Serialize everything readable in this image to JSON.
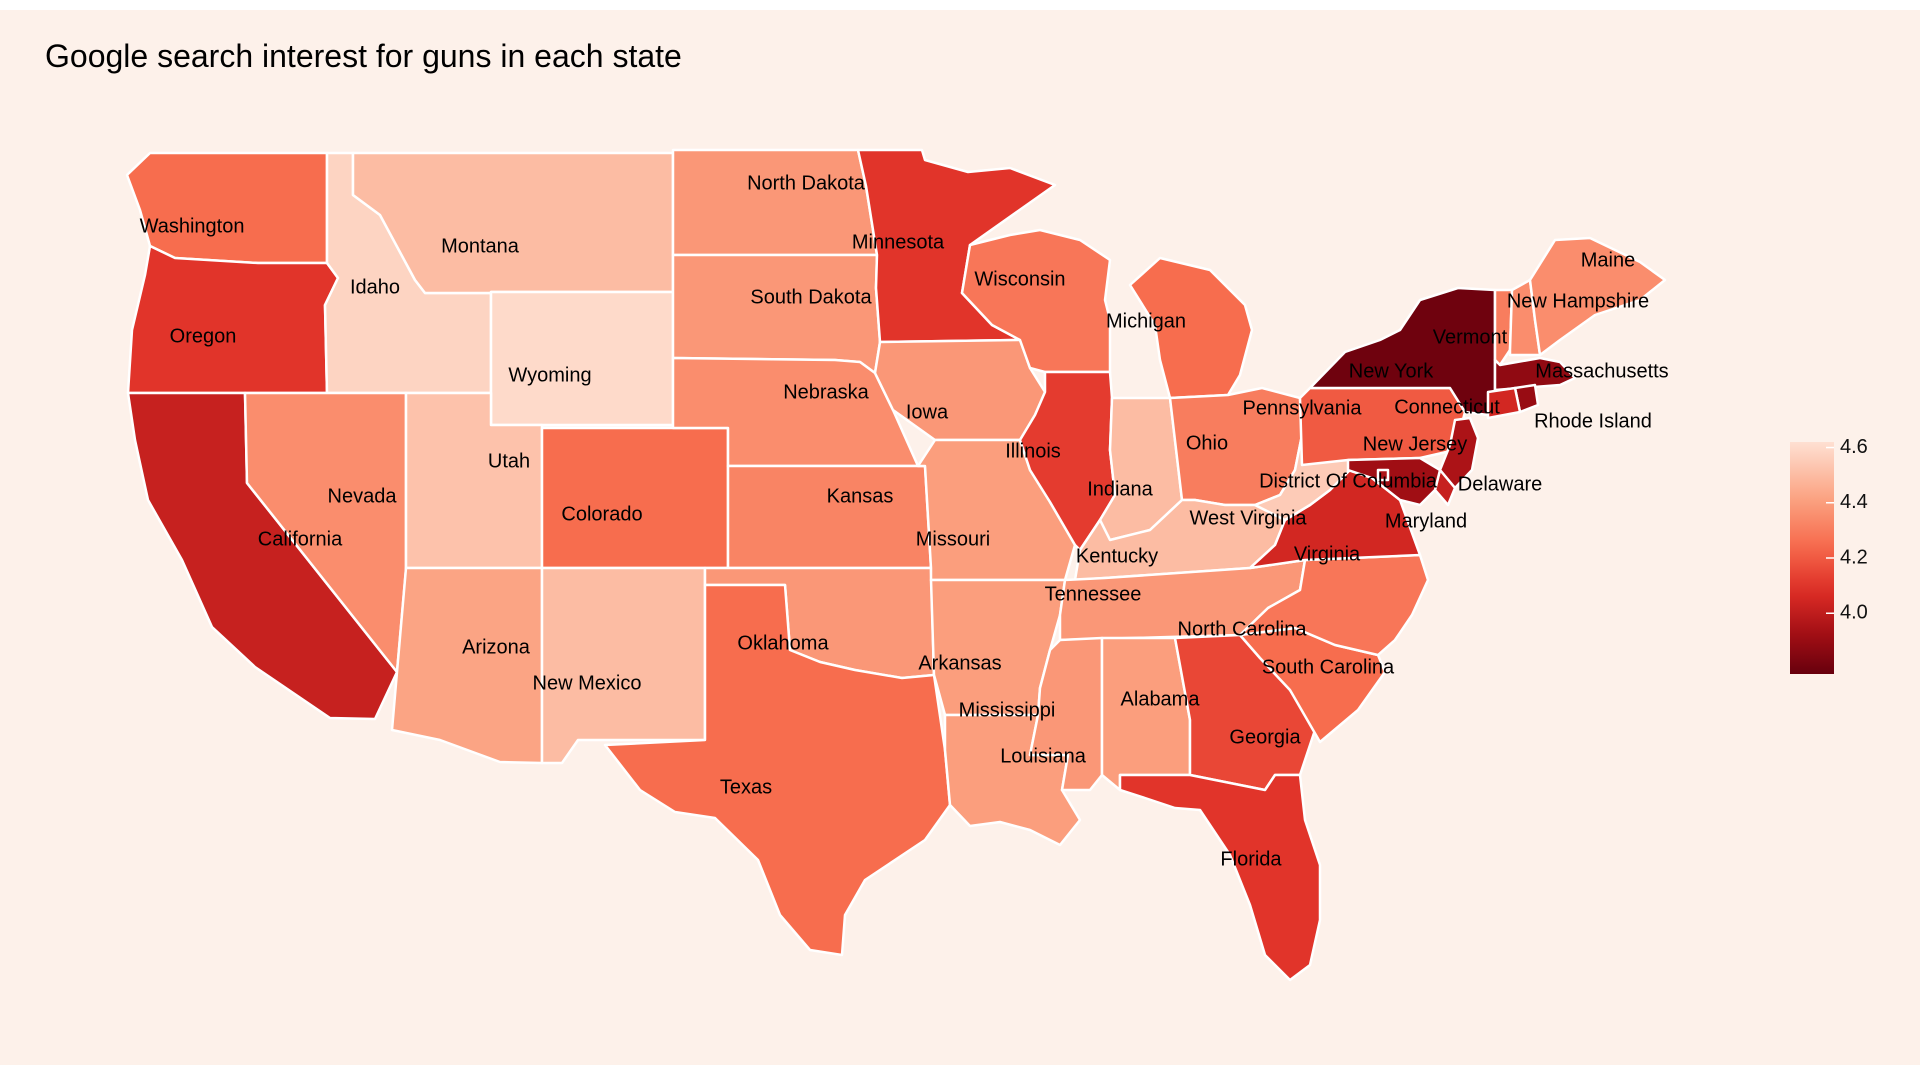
{
  "title": "Google search interest for guns in each state",
  "legend": {
    "ticks": [
      "4.6",
      "4.4",
      "4.2",
      "4.0"
    ],
    "min": 3.78,
    "max": 4.62,
    "color_low": "#67000d",
    "color_high": "#fee0d2"
  },
  "chart_data": {
    "type": "choropleth",
    "title": "Google search interest for guns in each state",
    "value_range": [
      3.78,
      4.62
    ],
    "states": [
      {
        "name": "Washington",
        "value": 4.25
      },
      {
        "name": "Oregon",
        "value": 4.1
      },
      {
        "name": "California",
        "value": 4.02
      },
      {
        "name": "Idaho",
        "value": 4.58
      },
      {
        "name": "Montana",
        "value": 4.5
      },
      {
        "name": "Wyoming",
        "value": 4.6
      },
      {
        "name": "Nevada",
        "value": 4.35
      },
      {
        "name": "Utah",
        "value": 4.52
      },
      {
        "name": "Colorado",
        "value": 4.25
      },
      {
        "name": "Arizona",
        "value": 4.42
      },
      {
        "name": "New Mexico",
        "value": 4.5
      },
      {
        "name": "North Dakota",
        "value": 4.38
      },
      {
        "name": "South Dakota",
        "value": 4.38
      },
      {
        "name": "Nebraska",
        "value": 4.35
      },
      {
        "name": "Kansas",
        "value": 4.32
      },
      {
        "name": "Oklahoma",
        "value": 4.38
      },
      {
        "name": "Texas",
        "value": 4.25
      },
      {
        "name": "Minnesota",
        "value": 4.1
      },
      {
        "name": "Iowa",
        "value": 4.38
      },
      {
        "name": "Missouri",
        "value": 4.4
      },
      {
        "name": "Arkansas",
        "value": 4.4
      },
      {
        "name": "Louisiana",
        "value": 4.4
      },
      {
        "name": "Wisconsin",
        "value": 4.28
      },
      {
        "name": "Illinois",
        "value": 4.12
      },
      {
        "name": "Michigan",
        "value": 4.25
      },
      {
        "name": "Indiana",
        "value": 4.5
      },
      {
        "name": "Ohio",
        "value": 4.3
      },
      {
        "name": "Kentucky",
        "value": 4.5
      },
      {
        "name": "Tennessee",
        "value": 4.38
      },
      {
        "name": "Mississippi",
        "value": 4.38
      },
      {
        "name": "Alabama",
        "value": 4.4
      },
      {
        "name": "Georgia",
        "value": 4.15
      },
      {
        "name": "Florida",
        "value": 4.1
      },
      {
        "name": "South Carolina",
        "value": 4.25
      },
      {
        "name": "North Carolina",
        "value": 4.28
      },
      {
        "name": "Virginia",
        "value": 4.05
      },
      {
        "name": "West Virginia",
        "value": 4.55
      },
      {
        "name": "Pennsylvania",
        "value": 4.2
      },
      {
        "name": "New York",
        "value": 3.8
      },
      {
        "name": "Vermont",
        "value": 4.3
      },
      {
        "name": "New Hampshire",
        "value": 4.35
      },
      {
        "name": "Maine",
        "value": 4.35
      },
      {
        "name": "Massachusetts",
        "value": 3.88
      },
      {
        "name": "Rhode Island",
        "value": 3.9
      },
      {
        "name": "Connecticut",
        "value": 4.05
      },
      {
        "name": "New Jersey",
        "value": 3.95
      },
      {
        "name": "Delaware",
        "value": 4.02
      },
      {
        "name": "Maryland",
        "value": 3.92
      },
      {
        "name": "District Of Columbia",
        "value": 3.95
      }
    ]
  }
}
